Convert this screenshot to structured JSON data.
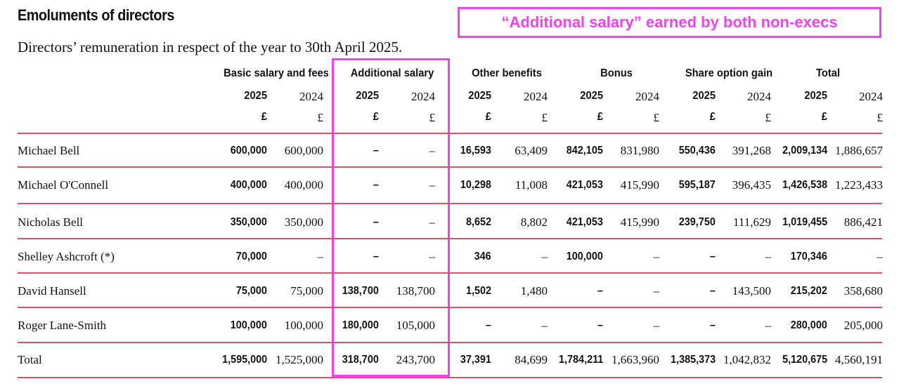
{
  "title": "Emoluments of directors",
  "subtitle": "Directors’ remuneration in respect of the year to 30th April 2025.",
  "callout": "“Additional salary” earned by both non-execs",
  "colors": {
    "highlight": "#ee44ee",
    "rule": "#d8526a"
  },
  "groups": [
    {
      "label": "Basic salary and fees"
    },
    {
      "label": "Additional salary"
    },
    {
      "label": "Other benefits"
    },
    {
      "label": "Bonus"
    },
    {
      "label": "Share option gain"
    },
    {
      "label": "Total"
    }
  ],
  "years": {
    "current": "2025",
    "prior": "2024"
  },
  "currency": "£",
  "rows": [
    {
      "name": "Michael Bell",
      "values": [
        "600,000",
        "600,000",
        "–",
        "–",
        "16,593",
        "63,409",
        "842,105",
        "831,980",
        "550,436",
        "391,268",
        "2,009,134",
        "1,886,657"
      ]
    },
    {
      "name": "Michael O'Connell",
      "values": [
        "400,000",
        "400,000",
        "–",
        "–",
        "10,298",
        "11,008",
        "421,053",
        "415,990",
        "595,187",
        "396,435",
        "1,426,538",
        "1,223,433"
      ]
    },
    {
      "name": "Nicholas Bell",
      "values": [
        "350,000",
        "350,000",
        "–",
        "–",
        "8,652",
        "8,802",
        "421,053",
        "415,990",
        "239,750",
        "111,629",
        "1,019,455",
        "886,421"
      ]
    },
    {
      "name": "Shelley Ashcroft (*)",
      "values": [
        "70,000",
        "–",
        "–",
        "–",
        "346",
        "–",
        "100,000",
        "–",
        "–",
        "–",
        "170,346",
        "–"
      ]
    },
    {
      "name": "David Hansell",
      "values": [
        "75,000",
        "75,000",
        "138,700",
        "138,700",
        "1,502",
        "1,480",
        "–",
        "–",
        "–",
        "143,500",
        "215,202",
        "358,680"
      ]
    },
    {
      "name": "Roger Lane-Smith",
      "values": [
        "100,000",
        "100,000",
        "180,000",
        "105,000",
        "–",
        "–",
        "–",
        "–",
        "–",
        "–",
        "280,000",
        "205,000"
      ]
    },
    {
      "name": "Total",
      "values": [
        "1,595,000",
        "1,525,000",
        "318,700",
        "243,700",
        "37,391",
        "84,699",
        "1,784,211",
        "1,663,960",
        "1,385,373",
        "1,042,832",
        "5,120,675",
        "4,560,191"
      ]
    }
  ]
}
